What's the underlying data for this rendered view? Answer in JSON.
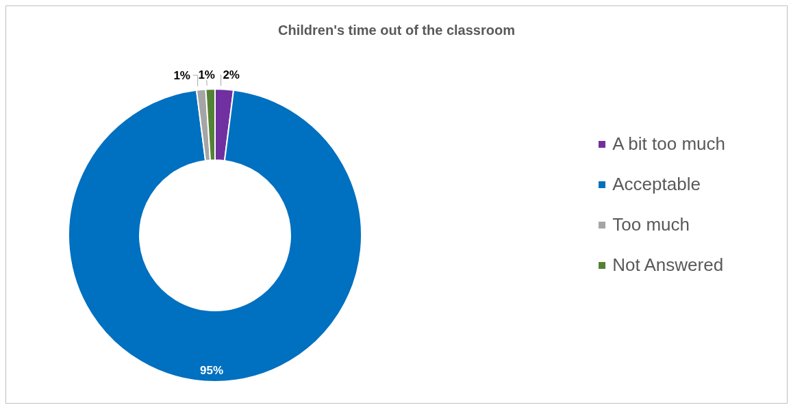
{
  "chart_data": {
    "type": "donut",
    "title": "Children's time out of the classroom",
    "categories": [
      "A bit too much",
      "Acceptable",
      "Too much",
      "Not Answered"
    ],
    "values": [
      2,
      95,
      1,
      1
    ],
    "colors": [
      "#7030a0",
      "#0070c0",
      "#a5a5a5",
      "#548235"
    ],
    "value_labels": [
      "2%",
      "95%",
      "1%",
      "1%"
    ],
    "legend": "right"
  }
}
